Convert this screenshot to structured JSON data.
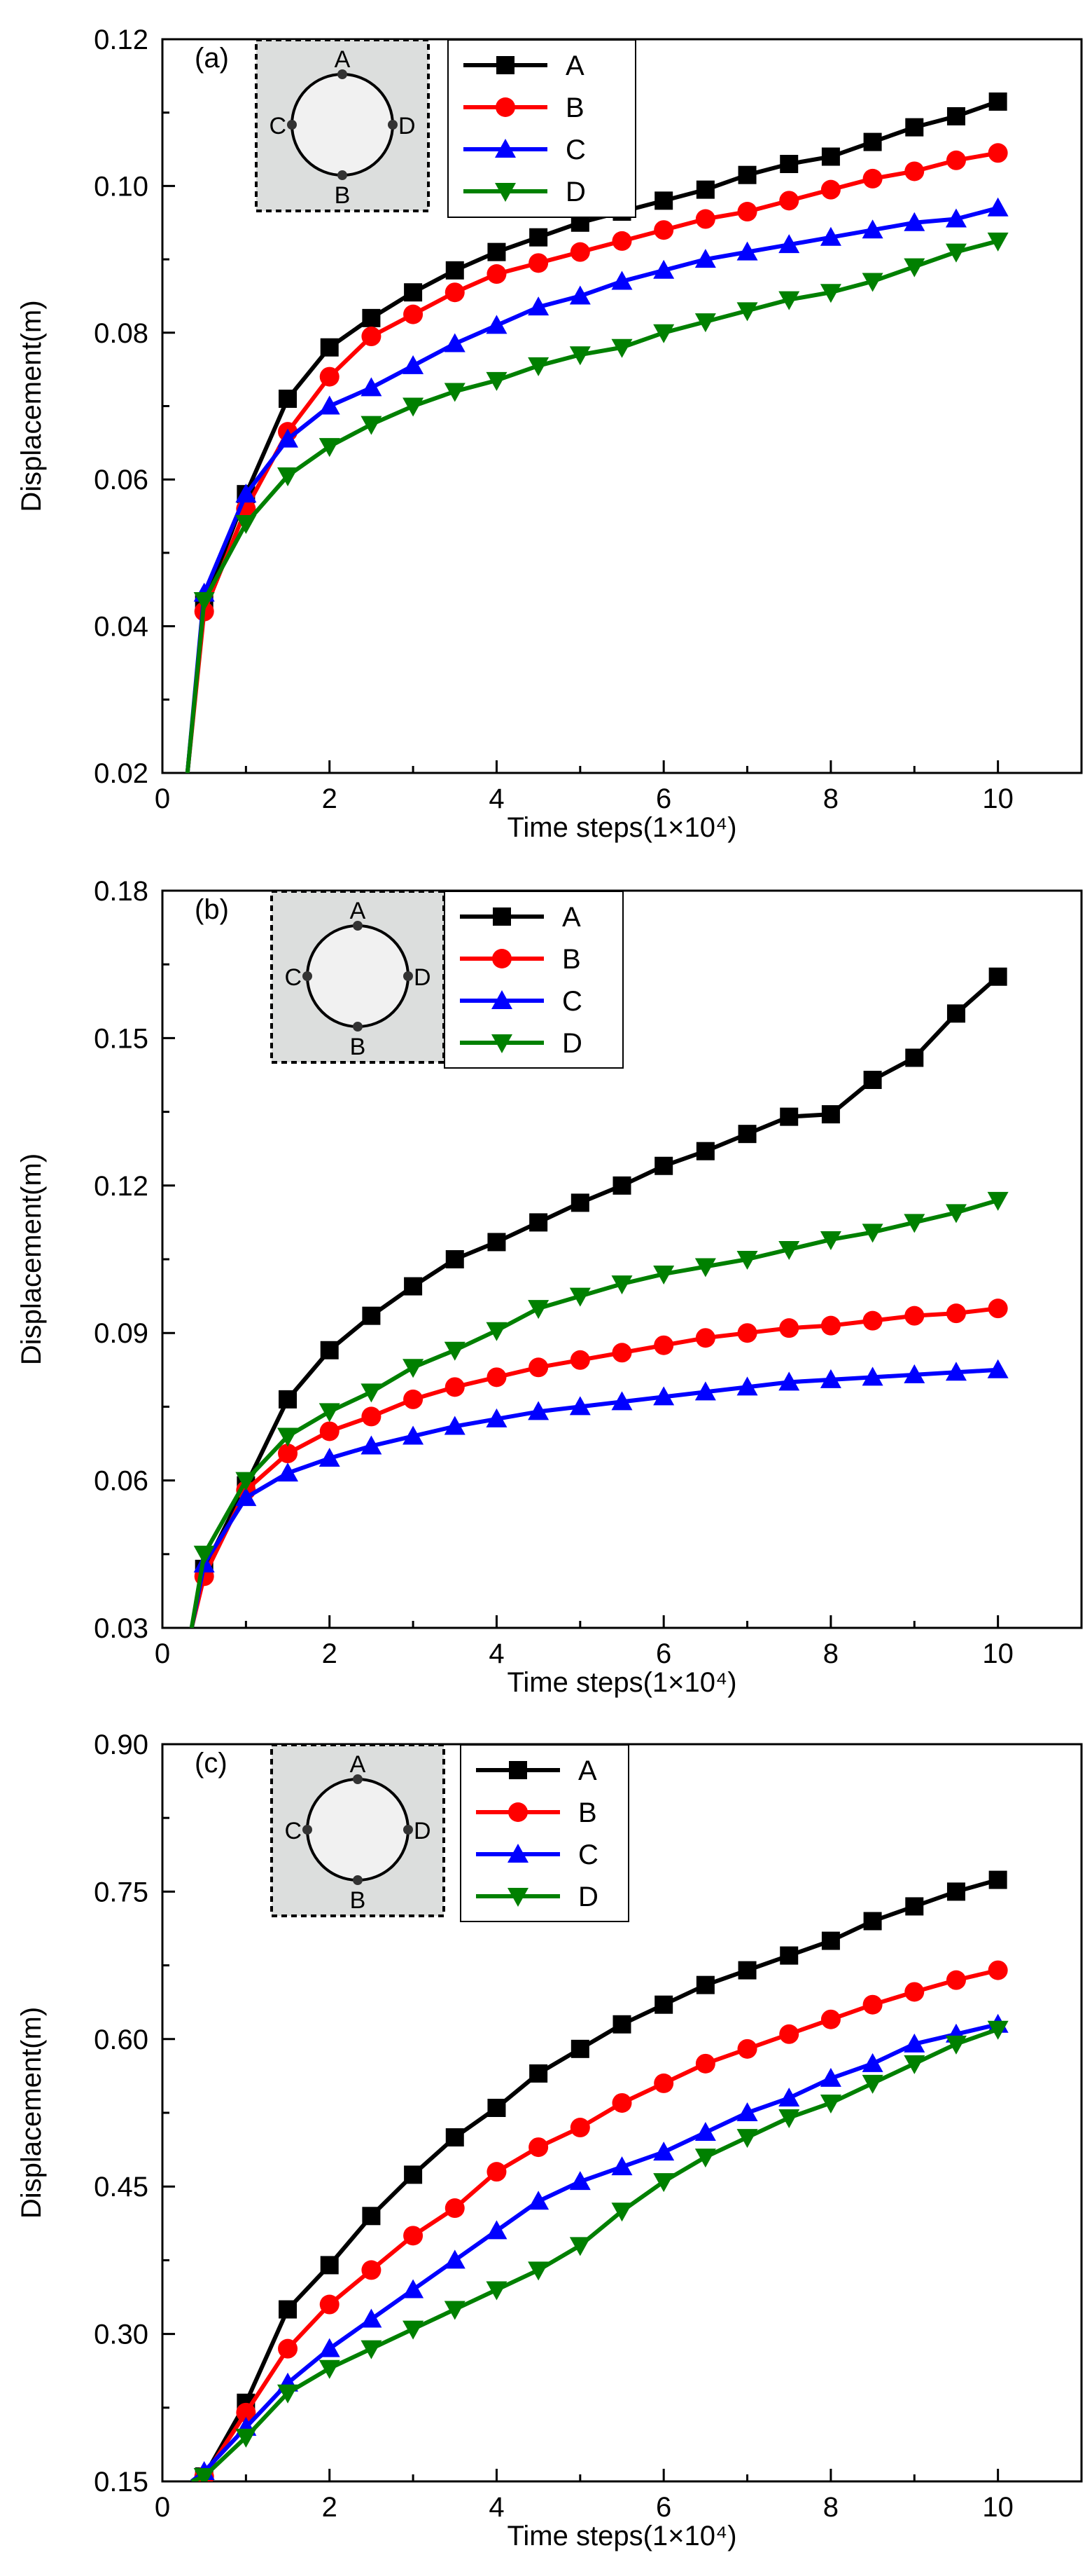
{
  "colors": {
    "A": "#000000",
    "B": "#ff0000",
    "C": "#0000ff",
    "D": "#008000",
    "inset_fill": "#dcdedd",
    "circle_fill": "#f1f1f1"
  },
  "chart_data": [
    {
      "type": "line",
      "panel_label": "(a)",
      "title": "",
      "xlabel": "Time steps(1×10⁴)",
      "ylabel": "Displacement(m)",
      "xlim": [
        0,
        11
      ],
      "ylim": [
        0.02,
        0.12
      ],
      "xticks": [
        0,
        2,
        4,
        6,
        8,
        10
      ],
      "xtick_labels": [
        "0",
        "2",
        "4",
        "6",
        "8",
        "10"
      ],
      "yticks": [
        0.02,
        0.04,
        0.06,
        0.08,
        0.1,
        0.12
      ],
      "ytick_labels": [
        "0.02",
        "0.04",
        "0.06",
        "0.08",
        "0.10",
        "0.12"
      ],
      "legend": [
        "A",
        "B",
        "C",
        "D"
      ],
      "inset_points": [
        "A",
        "B",
        "C",
        "D"
      ],
      "x": [
        0.5,
        1,
        1.5,
        2,
        2.5,
        3,
        3.5,
        4,
        4.5,
        5,
        5.5,
        6,
        6.5,
        7,
        7.5,
        8,
        8.5,
        9,
        9.5,
        10
      ],
      "start_point": [
        0.3,
        0.02
      ],
      "series": [
        {
          "name": "A",
          "marker": "square",
          "values": [
            0.043,
            0.058,
            0.071,
            0.078,
            0.082,
            0.0855,
            0.0885,
            0.091,
            0.093,
            0.095,
            0.0965,
            0.098,
            0.0995,
            0.1015,
            0.103,
            0.104,
            0.106,
            0.108,
            0.1095,
            0.1115
          ]
        },
        {
          "name": "B",
          "marker": "circle",
          "values": [
            0.042,
            0.056,
            0.0665,
            0.074,
            0.0795,
            0.0825,
            0.0855,
            0.088,
            0.0895,
            0.091,
            0.0925,
            0.094,
            0.0955,
            0.0965,
            0.098,
            0.0995,
            0.101,
            0.102,
            0.1035,
            0.1045
          ]
        },
        {
          "name": "C",
          "marker": "triangle-up",
          "values": [
            0.0445,
            0.058,
            0.0655,
            0.07,
            0.0725,
            0.0755,
            0.0785,
            0.081,
            0.0835,
            0.085,
            0.087,
            0.0885,
            0.09,
            0.091,
            0.092,
            0.093,
            0.094,
            0.095,
            0.0955,
            0.097
          ]
        },
        {
          "name": "D",
          "marker": "triangle-down",
          "values": [
            0.0435,
            0.054,
            0.0605,
            0.0645,
            0.0675,
            0.07,
            0.072,
            0.0735,
            0.0755,
            0.077,
            0.078,
            0.08,
            0.0815,
            0.083,
            0.0845,
            0.0855,
            0.087,
            0.089,
            0.091,
            0.0925
          ]
        }
      ]
    },
    {
      "type": "line",
      "panel_label": "(b)",
      "title": "",
      "xlabel": "Time steps(1×10⁴)",
      "ylabel": "Displacement(m)",
      "xlim": [
        0,
        11
      ],
      "ylim": [
        0.03,
        0.18
      ],
      "xticks": [
        0,
        2,
        4,
        6,
        8,
        10
      ],
      "xtick_labels": [
        "0",
        "2",
        "4",
        "6",
        "8",
        "10"
      ],
      "yticks": [
        0.03,
        0.06,
        0.09,
        0.12,
        0.15,
        0.18
      ],
      "ytick_labels": [
        "0.03",
        "0.06",
        "0.09",
        "0.12",
        "0.15",
        "0.18"
      ],
      "legend": [
        "A",
        "B",
        "C",
        "D"
      ],
      "inset_points": [
        "A",
        "B",
        "C",
        "D"
      ],
      "x": [
        0.5,
        1,
        1.5,
        2,
        2.5,
        3,
        3.5,
        4,
        4.5,
        5,
        5.5,
        6,
        6.5,
        7,
        7.5,
        8,
        8.5,
        9,
        9.5,
        10
      ],
      "start_point": [
        0.35,
        0.03
      ],
      "series": [
        {
          "name": "A",
          "marker": "square",
          "values": [
            0.042,
            0.059,
            0.0765,
            0.0865,
            0.0935,
            0.0995,
            0.105,
            0.1085,
            0.1125,
            0.1165,
            0.12,
            0.124,
            0.127,
            0.1305,
            0.134,
            0.1345,
            0.1415,
            0.146,
            0.155,
            0.1625
          ]
        },
        {
          "name": "B",
          "marker": "circle",
          "values": [
            0.0405,
            0.058,
            0.0655,
            0.07,
            0.073,
            0.0765,
            0.079,
            0.081,
            0.083,
            0.0845,
            0.086,
            0.0875,
            0.089,
            0.09,
            0.091,
            0.0915,
            0.0925,
            0.0935,
            0.094,
            0.095
          ]
        },
        {
          "name": "C",
          "marker": "triangle-up",
          "values": [
            0.043,
            0.0565,
            0.0615,
            0.0645,
            0.067,
            0.069,
            0.071,
            0.0725,
            0.074,
            0.075,
            0.076,
            0.077,
            0.078,
            0.079,
            0.08,
            0.0805,
            0.081,
            0.0815,
            0.082,
            0.0825
          ]
        },
        {
          "name": "D",
          "marker": "triangle-down",
          "values": [
            0.045,
            0.06,
            0.069,
            0.074,
            0.078,
            0.083,
            0.0865,
            0.0905,
            0.095,
            0.0975,
            0.1,
            0.102,
            0.1035,
            0.105,
            0.107,
            0.109,
            0.1105,
            0.1125,
            0.1145,
            0.117
          ]
        }
      ]
    },
    {
      "type": "line",
      "panel_label": "(c)",
      "title": "",
      "xlabel": "Time steps(1×10⁴)",
      "ylabel": "Displacement(m)",
      "xlim": [
        0,
        11
      ],
      "ylim": [
        0.15,
        0.9
      ],
      "xticks": [
        0,
        2,
        4,
        6,
        8,
        10
      ],
      "xtick_labels": [
        "0",
        "2",
        "4",
        "6",
        "8",
        "10"
      ],
      "yticks": [
        0.15,
        0.3,
        0.45,
        0.6,
        0.75,
        0.9
      ],
      "ytick_labels": [
        "0.15",
        "0.30",
        "0.45",
        "0.60",
        "0.75",
        "0.90"
      ],
      "legend": [
        "A",
        "B",
        "C",
        "D"
      ],
      "inset_points": [
        "A",
        "B",
        "C",
        "D"
      ],
      "x": [
        0.5,
        1,
        1.5,
        2,
        2.5,
        3,
        3.5,
        4,
        4.5,
        5,
        5.5,
        6,
        6.5,
        7,
        7.5,
        8,
        8.5,
        9,
        9.5,
        10
      ],
      "start_point": [
        0.35,
        0.15
      ],
      "series": [
        {
          "name": "A",
          "marker": "square",
          "values": [
            0.155,
            0.23,
            0.325,
            0.37,
            0.42,
            0.462,
            0.5,
            0.53,
            0.565,
            0.59,
            0.615,
            0.635,
            0.655,
            0.67,
            0.685,
            0.7,
            0.72,
            0.735,
            0.75,
            0.762
          ]
        },
        {
          "name": "B",
          "marker": "circle",
          "values": [
            0.155,
            0.22,
            0.285,
            0.33,
            0.365,
            0.4,
            0.428,
            0.465,
            0.49,
            0.51,
            0.535,
            0.555,
            0.575,
            0.59,
            0.605,
            0.62,
            0.635,
            0.648,
            0.66,
            0.67
          ]
        },
        {
          "name": "C",
          "marker": "triangle-up",
          "values": [
            0.16,
            0.205,
            0.25,
            0.285,
            0.315,
            0.345,
            0.375,
            0.405,
            0.435,
            0.455,
            0.47,
            0.485,
            0.505,
            0.525,
            0.54,
            0.56,
            0.575,
            0.595,
            0.605,
            0.615
          ]
        },
        {
          "name": "D",
          "marker": "triangle-down",
          "values": [
            0.155,
            0.195,
            0.24,
            0.265,
            0.285,
            0.305,
            0.325,
            0.345,
            0.365,
            0.39,
            0.425,
            0.455,
            0.48,
            0.5,
            0.52,
            0.535,
            0.555,
            0.575,
            0.595,
            0.61
          ]
        }
      ]
    }
  ]
}
